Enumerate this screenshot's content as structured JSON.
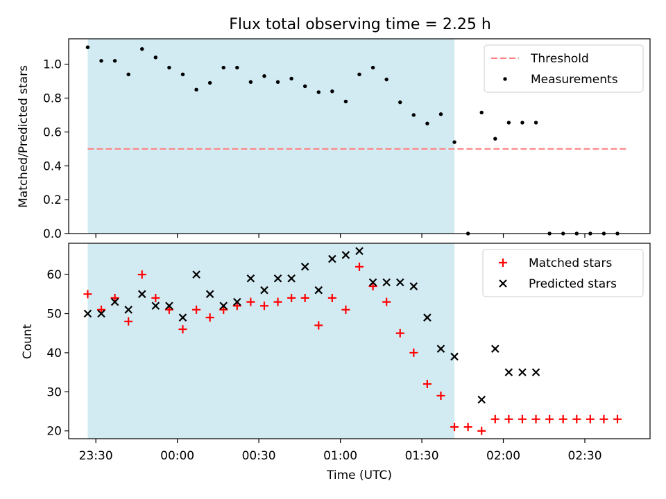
{
  "chart_data": [
    {
      "type": "scatter",
      "panel": "top",
      "title": "Flux total observing time = 2.25 h",
      "ylabel": "Matched/Predicted stars",
      "ylim": [
        0,
        1.15
      ],
      "y_ticks": [
        0.0,
        0.2,
        0.4,
        0.6,
        0.8,
        1.0
      ],
      "y_tick_labels": [
        "0.0",
        "0.2",
        "0.4",
        "0.6",
        "0.8",
        "1.0"
      ],
      "legend_position": "top-right",
      "shaded_interval": {
        "start": "23:27",
        "end": "01:42",
        "color": "#add8e6"
      },
      "threshold": {
        "name": "Threshold",
        "value": 0.5,
        "start": "23:27",
        "end": "02:46",
        "color": "#ff7f7f"
      },
      "series": [
        {
          "name": "Measurements",
          "color": "#000000",
          "marker": "dot",
          "x": [
            "23:27",
            "23:32",
            "23:37",
            "23:42",
            "23:47",
            "23:52",
            "23:57",
            "00:02",
            "00:07",
            "00:12",
            "00:17",
            "00:22",
            "00:27",
            "00:32",
            "00:37",
            "00:42",
            "00:47",
            "00:52",
            "00:57",
            "01:02",
            "01:07",
            "01:12",
            "01:17",
            "01:22",
            "01:27",
            "01:32",
            "01:37",
            "01:42",
            "01:47",
            "01:52",
            "01:57",
            "02:02",
            "02:07",
            "02:12",
            "02:17",
            "02:22",
            "02:27",
            "02:32",
            "02:37",
            "02:42"
          ],
          "y": [
            1.1,
            1.02,
            1.02,
            0.94,
            1.09,
            1.04,
            0.98,
            0.94,
            0.85,
            0.89,
            0.98,
            0.98,
            0.895,
            0.93,
            0.895,
            0.915,
            0.87,
            0.835,
            0.84,
            0.78,
            0.94,
            0.98,
            0.91,
            0.775,
            0.7,
            0.65,
            0.705,
            0.54,
            0.0,
            0.715,
            0.56,
            0.655,
            0.655,
            0.655,
            0.0,
            0.0,
            0.0,
            0.0,
            0.0,
            0.0
          ]
        }
      ]
    },
    {
      "type": "scatter",
      "panel": "bottom",
      "xlabel": "Time (UTC)",
      "ylabel": "Count",
      "ylim": [
        18,
        68
      ],
      "xlim": [
        "23:20",
        "02:54"
      ],
      "x_ticks": [
        "23:30",
        "00:00",
        "00:30",
        "01:00",
        "01:30",
        "02:00",
        "02:30"
      ],
      "y_ticks": [
        20,
        30,
        40,
        50,
        60
      ],
      "y_tick_labels": [
        "20",
        "30",
        "40",
        "50",
        "60"
      ],
      "legend_position": "top-right",
      "shaded_interval": {
        "start": "23:27",
        "end": "01:42",
        "color": "#add8e6"
      },
      "series": [
        {
          "name": "Matched stars",
          "color": "#ff0000",
          "marker": "plus",
          "x": [
            "23:27",
            "23:32",
            "23:37",
            "23:42",
            "23:47",
            "23:52",
            "23:57",
            "00:02",
            "00:07",
            "00:12",
            "00:17",
            "00:22",
            "00:27",
            "00:32",
            "00:37",
            "00:42",
            "00:47",
            "00:52",
            "00:57",
            "01:02",
            "01:07",
            "01:12",
            "01:17",
            "01:22",
            "01:27",
            "01:32",
            "01:37",
            "01:42",
            "01:47",
            "01:52",
            "01:57",
            "02:02",
            "02:07",
            "02:12",
            "02:17",
            "02:22",
            "02:27",
            "02:32",
            "02:37",
            "02:42"
          ],
          "y": [
            55,
            51,
            54,
            48,
            60,
            54,
            51,
            46,
            51,
            49,
            51,
            52,
            53,
            52,
            53,
            54,
            54,
            47,
            54,
            51,
            62,
            57,
            53,
            45,
            40,
            32,
            29,
            21,
            21,
            20,
            23,
            23,
            23,
            23,
            23,
            23,
            23,
            23,
            23,
            23
          ]
        },
        {
          "name": "Predicted stars",
          "color": "#000000",
          "marker": "x",
          "x": [
            "23:27",
            "23:32",
            "23:37",
            "23:42",
            "23:47",
            "23:52",
            "23:57",
            "00:02",
            "00:07",
            "00:12",
            "00:17",
            "00:22",
            "00:27",
            "00:32",
            "00:37",
            "00:42",
            "00:47",
            "00:52",
            "00:57",
            "01:02",
            "01:07",
            "01:12",
            "01:17",
            "01:22",
            "01:27",
            "01:32",
            "01:37",
            "01:42",
            "01:52",
            "01:57",
            "02:02",
            "02:07",
            "02:12"
          ],
          "y": [
            50,
            50,
            53,
            51,
            55,
            52,
            52,
            49,
            60,
            55,
            52,
            53,
            59,
            56,
            59,
            59,
            62,
            56,
            64,
            65,
            66,
            58,
            58,
            58,
            57,
            49,
            41,
            39,
            28,
            41,
            35,
            35,
            35
          ]
        }
      ]
    }
  ]
}
